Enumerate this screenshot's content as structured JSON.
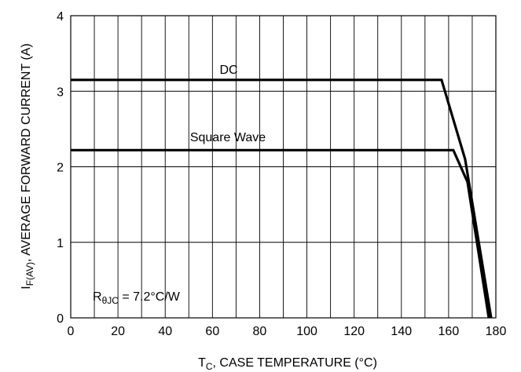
{
  "chart_data": {
    "type": "line",
    "xlabel": {
      "main": "T",
      "sub": "C",
      "rest": ", CASE TEMPERATURE (°C)"
    },
    "ylabel": {
      "main": "I",
      "sub": "F(AV)",
      "rest": ", AVERAGE FORWARD CURRENT (A)"
    },
    "xlim": [
      0,
      180
    ],
    "ylim": [
      0,
      4
    ],
    "xticks": [
      0,
      20,
      40,
      60,
      80,
      100,
      120,
      140,
      160,
      180
    ],
    "yticks": [
      0,
      1,
      2,
      3,
      4
    ],
    "grid": true,
    "series": [
      {
        "name": "DC",
        "x": [
          0,
          157,
          167,
          178
        ],
        "y": [
          3.15,
          3.15,
          2.1,
          0
        ]
      },
      {
        "name": "Square Wave",
        "x": [
          0,
          162,
          168,
          177
        ],
        "y": [
          2.22,
          2.22,
          1.8,
          0
        ]
      }
    ],
    "annotation": {
      "main": "R",
      "sub": "θJC",
      "rest": " = 7.2°C/W"
    }
  }
}
